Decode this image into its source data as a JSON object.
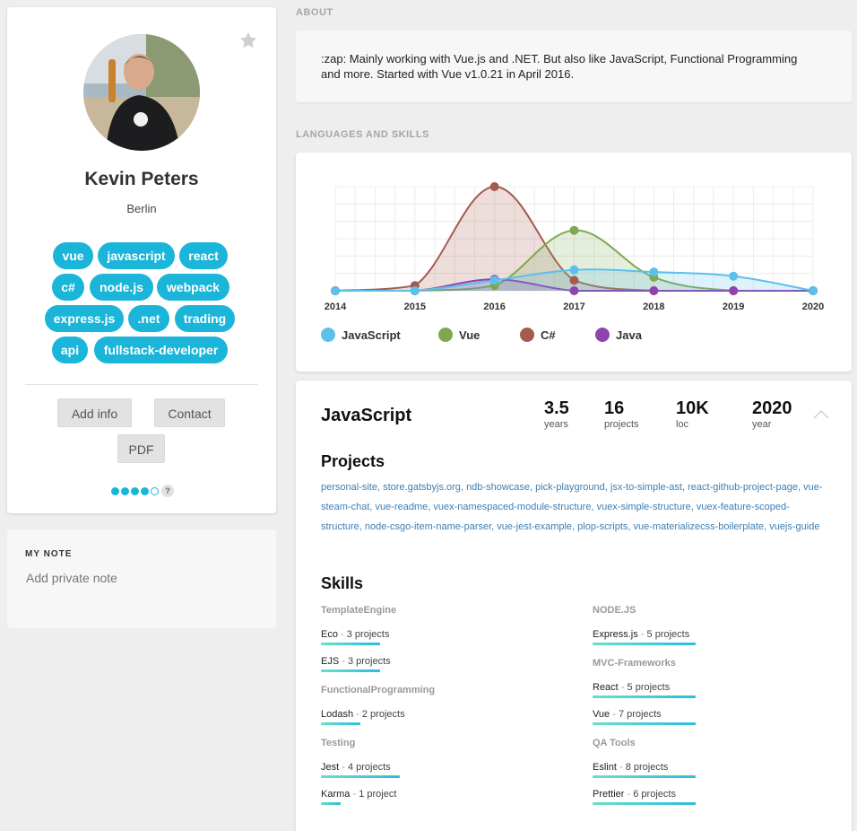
{
  "profile": {
    "name": "Kevin Peters",
    "location": "Berlin",
    "tags": [
      "vue",
      "javascript",
      "react",
      "c#",
      "node.js",
      "webpack",
      "express.js",
      ".net",
      "trading",
      "api",
      "fullstack-developer"
    ],
    "buttons": {
      "add_info": "Add info",
      "contact": "Contact",
      "pdf": "PDF"
    },
    "rating": {
      "filled": 4,
      "total": 5,
      "help": "?"
    }
  },
  "note": {
    "title": "MY NOTE",
    "placeholder": "Add private note"
  },
  "about": {
    "label": "ABOUT",
    "text": ":zap: Mainly working with Vue.js and .NET. But also like JavaScript, Functional Programming and more. Started with Vue v1.0.21 in April 2016."
  },
  "skills_section": {
    "label": "LANGUAGES AND SKILLS"
  },
  "chart_data": {
    "type": "area",
    "x": [
      "2014",
      "2015",
      "2016",
      "2017",
      "2018",
      "2019",
      "2020"
    ],
    "ylim": [
      0,
      100
    ],
    "grid": true,
    "legend": "bottom",
    "series": [
      {
        "name": "JavaScript",
        "color": "#5bc0eb",
        "values": [
          0,
          0,
          10,
          20,
          18,
          14,
          0
        ]
      },
      {
        "name": "Vue",
        "color": "#7fa84e",
        "values": [
          0,
          0,
          5,
          58,
          13,
          0,
          0
        ]
      },
      {
        "name": "C#",
        "color": "#a55a4e",
        "values": [
          0,
          5,
          100,
          10,
          0,
          0,
          0
        ]
      },
      {
        "name": "Java",
        "color": "#8e44ad",
        "values": [
          0,
          0,
          11,
          0,
          0,
          0,
          0
        ]
      }
    ]
  },
  "language": {
    "name": "JavaScript",
    "stats": [
      {
        "value": "3.5",
        "label": "years"
      },
      {
        "value": "16",
        "label": "projects"
      },
      {
        "value": "10K",
        "label": "loc"
      },
      {
        "value": "2020",
        "label": "year"
      }
    ],
    "projects_title": "Projects",
    "projects": [
      "personal-site",
      "store.gatsbyjs.org",
      "ndb-showcase",
      "pick-playground",
      "jsx-to-simple-ast",
      "react-github-project-page",
      "vue-steam-chat",
      "vue-readme",
      "vuex-namespaced-module-structure",
      "vuex-simple-structure",
      "vuex-feature-scoped-structure",
      "node-csgo-item-name-parser",
      "vue-jest-example",
      "plop-scripts",
      "vue-materializecss-boilerplate",
      "vuejs-guide"
    ],
    "skills_title": "Skills",
    "skill_groups_left": [
      {
        "category": "TemplateEngine",
        "items": [
          {
            "name": "Eco",
            "count": "3 projects",
            "level": 0.6
          },
          {
            "name": "EJS",
            "count": "3 projects",
            "level": 0.6
          }
        ]
      },
      {
        "category": "FunctionalProgramming",
        "items": [
          {
            "name": "Lodash",
            "count": "2 projects",
            "level": 0.4
          }
        ]
      },
      {
        "category": "Testing",
        "items": [
          {
            "name": "Jest",
            "count": "4 projects",
            "level": 0.8
          },
          {
            "name": "Karma",
            "count": "1 project",
            "level": 0.2
          }
        ]
      }
    ],
    "skill_groups_right": [
      {
        "category": "NODE.JS",
        "items": [
          {
            "name": "Express.js",
            "count": "5 projects",
            "level": 1.0
          }
        ]
      },
      {
        "category": "MVC-Frameworks",
        "items": [
          {
            "name": "React",
            "count": "5 projects",
            "level": 1.0
          },
          {
            "name": "Vue",
            "count": "7 projects",
            "level": 1.0
          }
        ]
      },
      {
        "category": "QA Tools",
        "items": [
          {
            "name": "Eslint",
            "count": "8 projects",
            "level": 1.0
          },
          {
            "name": "Prettier",
            "count": "6 projects",
            "level": 1.0
          }
        ]
      }
    ]
  }
}
